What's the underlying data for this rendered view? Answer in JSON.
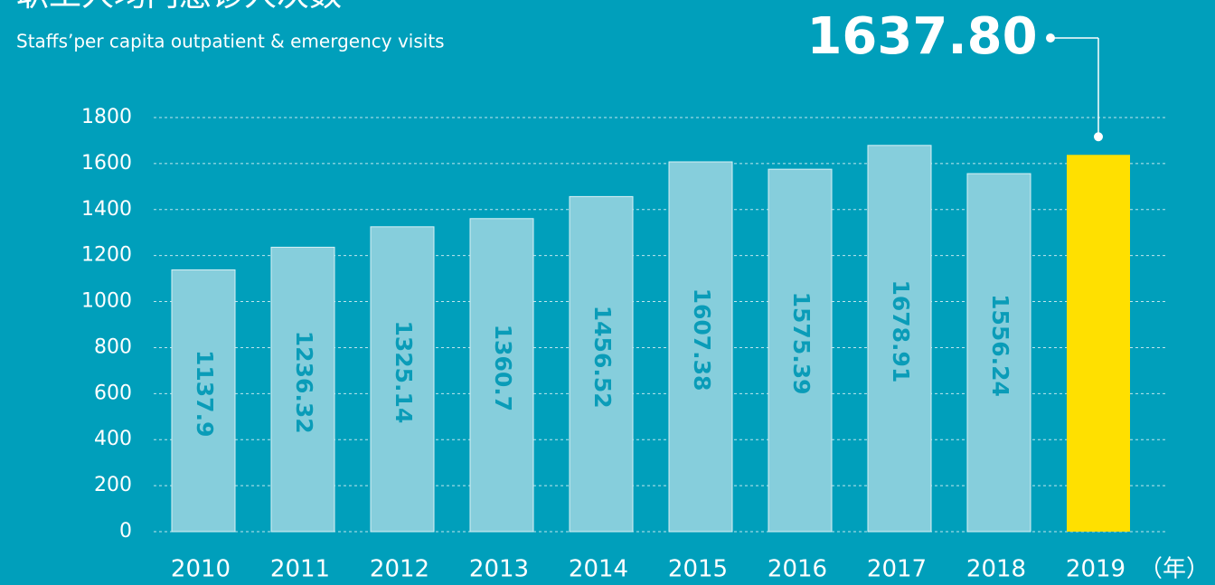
{
  "chart_data": {
    "type": "bar",
    "title": "职工人均门急诊人次数",
    "subtitle": "Staffs’per capita outpatient & emergency visits",
    "x_unit": "（年）",
    "categories": [
      "2010",
      "2011",
      "2012",
      "2013",
      "2014",
      "2015",
      "2016",
      "2017",
      "2018",
      "2019"
    ],
    "values": [
      1137.9,
      1236.32,
      1325.14,
      1360.7,
      1456.52,
      1607.38,
      1575.39,
      1678.91,
      1556.24,
      1637.8
    ],
    "value_labels": [
      "1137.9",
      "1236.32",
      "1325.14",
      "1360.7",
      "1456.52",
      "1607.38",
      "1575.39",
      "1678.91",
      "1556.24",
      "1637.80"
    ],
    "colors": [
      "#86cedc",
      "#86cedc",
      "#86cedc",
      "#86cedc",
      "#86cedc",
      "#86cedc",
      "#86cedc",
      "#86cedc",
      "#86cedc",
      "#ffe000"
    ],
    "ylim": [
      0,
      1800
    ],
    "yticks": [
      0,
      200,
      400,
      600,
      800,
      1000,
      1200,
      1400,
      1600,
      1800
    ],
    "grid": true
  }
}
